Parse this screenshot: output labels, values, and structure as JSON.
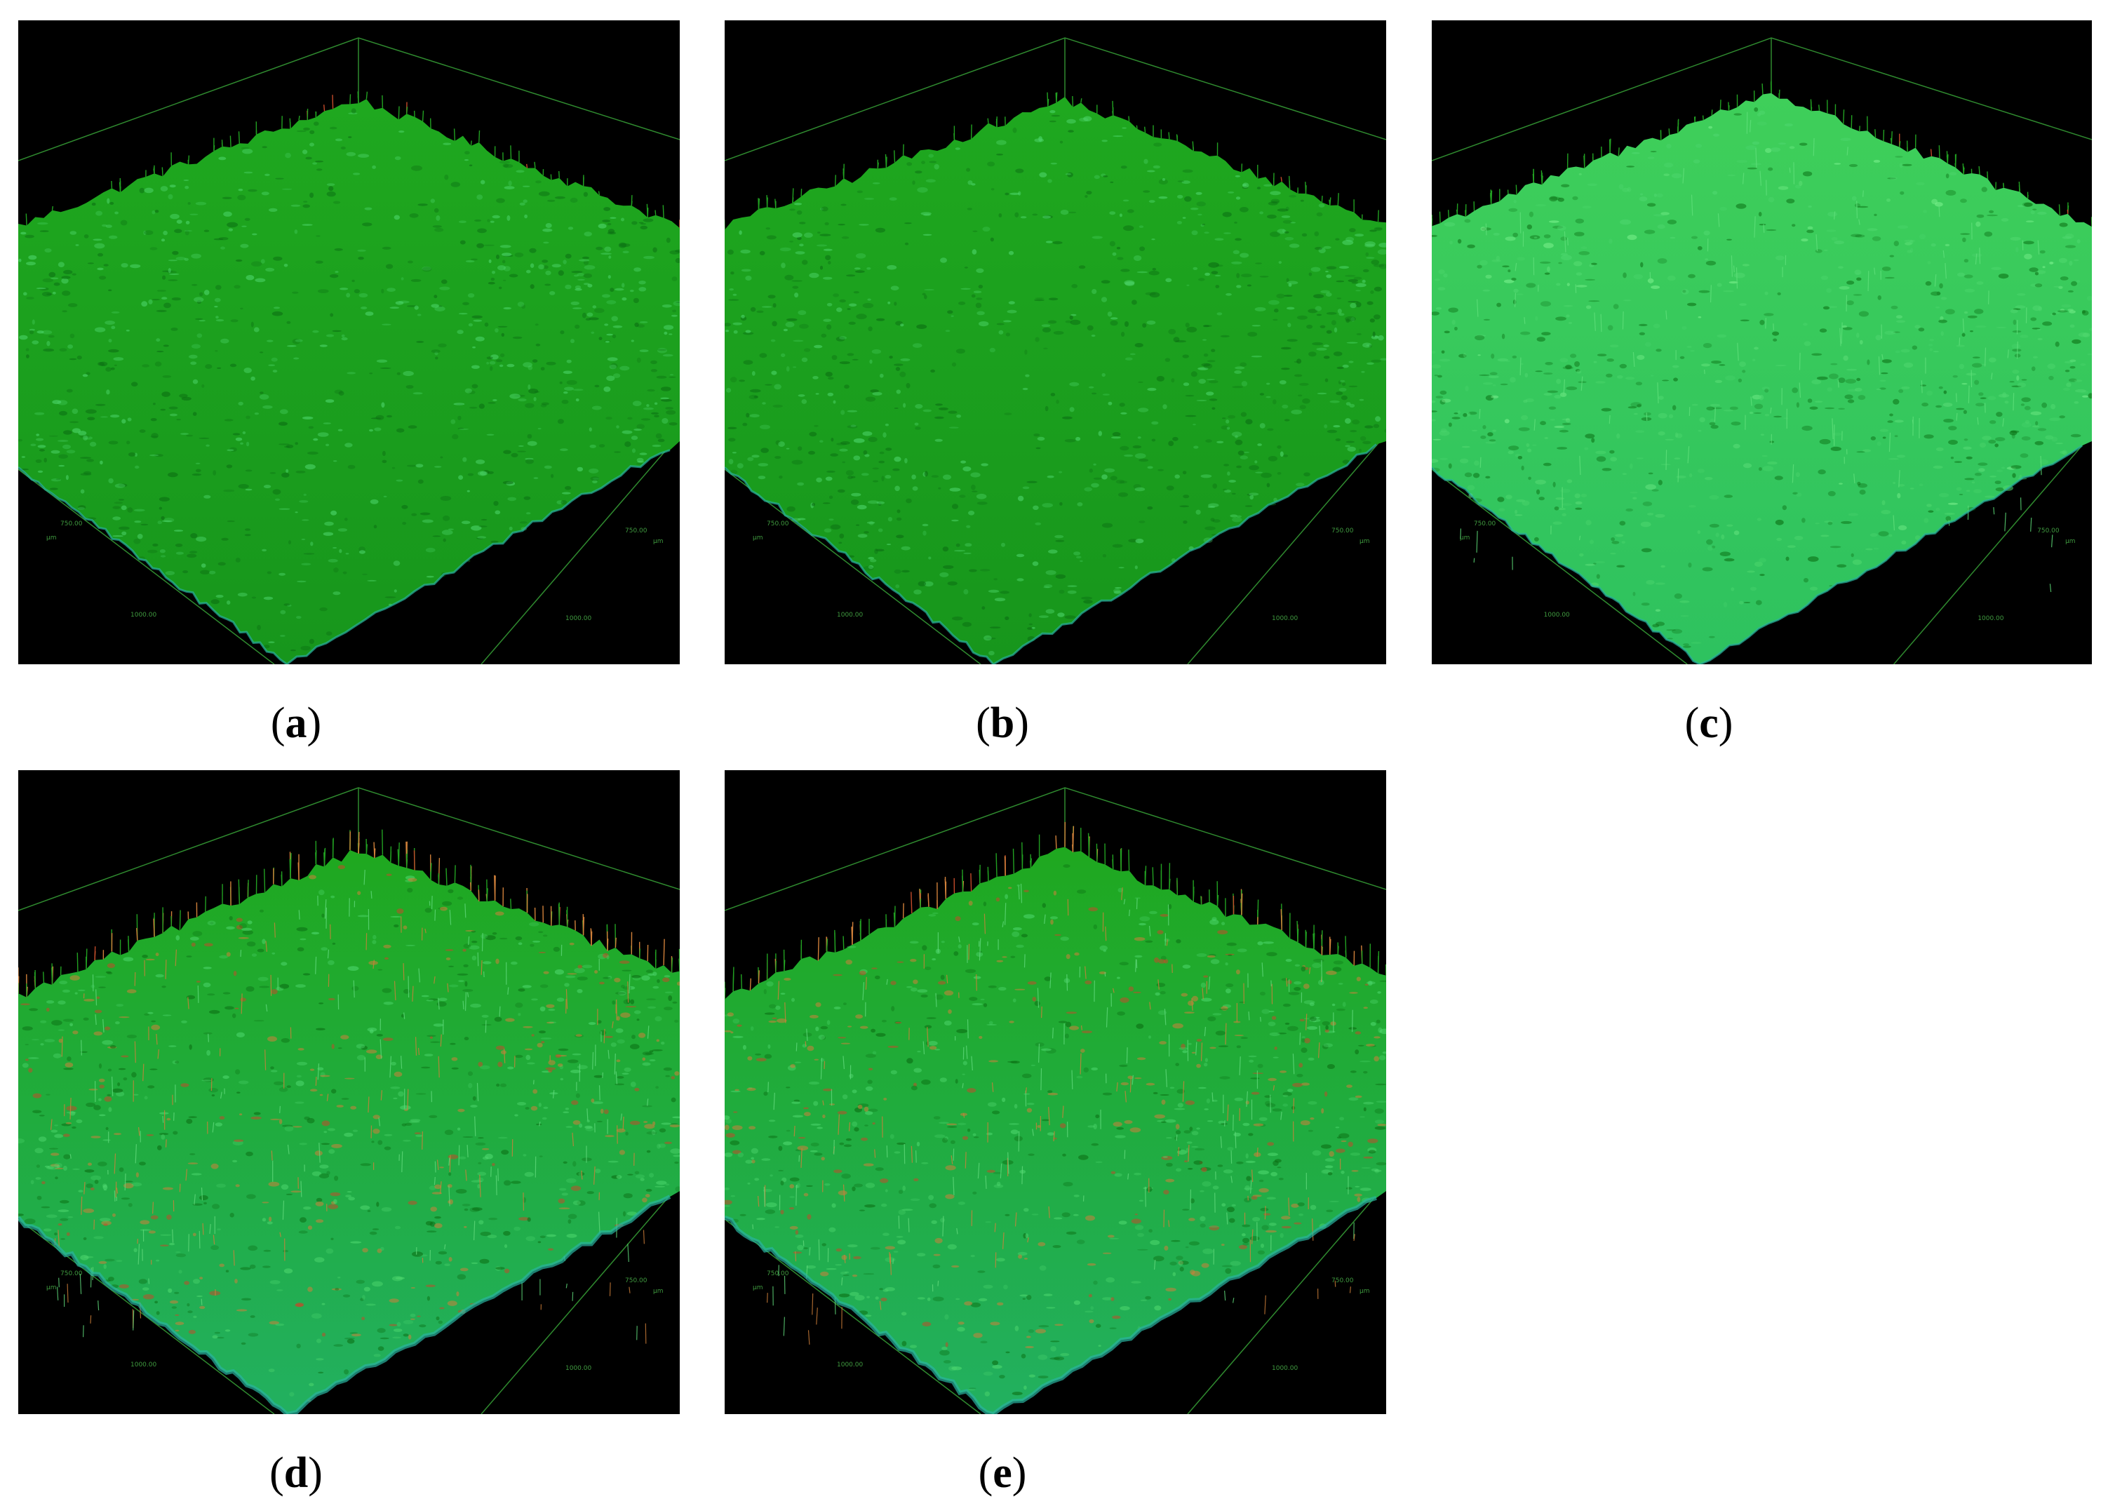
{
  "figure": {
    "panels": [
      {
        "id": "a",
        "caption_open": "(",
        "caption_letter": "a",
        "caption_close": ")",
        "ticks": [
          "750.00",
          "750.00",
          "1000.00",
          "1000.00",
          "µm",
          "µm"
        ],
        "palette": "green"
      },
      {
        "id": "b",
        "caption_open": "(",
        "caption_letter": "b",
        "caption_close": ")",
        "ticks": [
          "750.00",
          "750.00",
          "1000.00",
          "1000.00",
          "µm",
          "µm"
        ],
        "palette": "green"
      },
      {
        "id": "c",
        "caption_open": "(",
        "caption_letter": "c",
        "caption_close": ")",
        "ticks": [
          "750.00",
          "750.00",
          "1000.00",
          "1000.00",
          "µm",
          "µm"
        ],
        "palette": "green-bright"
      },
      {
        "id": "d",
        "caption_open": "(",
        "caption_letter": "d",
        "caption_close": ")",
        "ticks": [
          "750.00",
          "750.00",
          "1000.00",
          "1000.00",
          "µm",
          "µm"
        ],
        "palette": "green-orange"
      },
      {
        "id": "e",
        "caption_open": "(",
        "caption_letter": "e",
        "caption_close": ")",
        "ticks": [
          "750.00",
          "750.00",
          "1000.00",
          "1000.00",
          "µm",
          "µm"
        ],
        "palette": "green-orange"
      }
    ]
  },
  "colors": {
    "background": "#000000",
    "surface_green": "#1fa81f",
    "surface_light": "#4fd86f",
    "surface_dark": "#0a6d12",
    "peak_orange": "#d0803a",
    "peak_red": "#c24a2a",
    "edge_cyan": "#2ab4a0",
    "frame_line": "#2f8a2f"
  }
}
